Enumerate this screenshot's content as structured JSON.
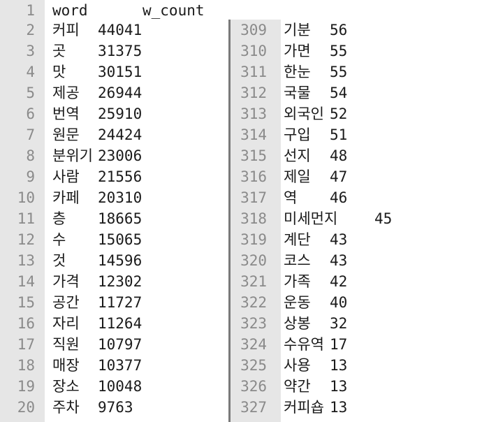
{
  "header": {
    "word_label": "word",
    "count_label": "w_count",
    "line_number": "1"
  },
  "left_rows": [
    {
      "n": "2",
      "word": "커피",
      "count": "44041"
    },
    {
      "n": "3",
      "word": "곳",
      "count": "31375"
    },
    {
      "n": "4",
      "word": "맛",
      "count": "30151"
    },
    {
      "n": "5",
      "word": "제공",
      "count": "26944"
    },
    {
      "n": "6",
      "word": "번역",
      "count": "25910"
    },
    {
      "n": "7",
      "word": "원문",
      "count": "24424"
    },
    {
      "n": "8",
      "word": "분위기",
      "count": "23006"
    },
    {
      "n": "9",
      "word": "사람",
      "count": "21556"
    },
    {
      "n": "10",
      "word": "카페",
      "count": "20310"
    },
    {
      "n": "11",
      "word": "층",
      "count": "18665"
    },
    {
      "n": "12",
      "word": "수",
      "count": "15065"
    },
    {
      "n": "13",
      "word": "것",
      "count": "14596"
    },
    {
      "n": "14",
      "word": "가격",
      "count": "12302"
    },
    {
      "n": "15",
      "word": "공간",
      "count": "11727"
    },
    {
      "n": "16",
      "word": "자리",
      "count": "11264"
    },
    {
      "n": "17",
      "word": "직원",
      "count": "10797"
    },
    {
      "n": "18",
      "word": "매장",
      "count": "10377"
    },
    {
      "n": "19",
      "word": "장소",
      "count": "10048"
    },
    {
      "n": "20",
      "word": "주차",
      "count": "9763"
    }
  ],
  "right_rows": [
    {
      "n": "309",
      "word": "기분",
      "count": "56"
    },
    {
      "n": "310",
      "word": "가면",
      "count": "55"
    },
    {
      "n": "311",
      "word": "한눈",
      "count": "55"
    },
    {
      "n": "312",
      "word": "국물",
      "count": "54"
    },
    {
      "n": "313",
      "word": "외국인",
      "count": "52"
    },
    {
      "n": "314",
      "word": "구입",
      "count": "51"
    },
    {
      "n": "315",
      "word": "선지",
      "count": "48"
    },
    {
      "n": "316",
      "word": "제일",
      "count": "47"
    },
    {
      "n": "317",
      "word": "역",
      "count": "46"
    },
    {
      "n": "318",
      "word": "미세먼지",
      "count": "45",
      "wide": true
    },
    {
      "n": "319",
      "word": "계단",
      "count": "43"
    },
    {
      "n": "320",
      "word": "코스",
      "count": "43"
    },
    {
      "n": "321",
      "word": "가족",
      "count": "42"
    },
    {
      "n": "322",
      "word": "운동",
      "count": "40"
    },
    {
      "n": "323",
      "word": "상봉",
      "count": "32"
    },
    {
      "n": "324",
      "word": "수유역",
      "count": "17"
    },
    {
      "n": "325",
      "word": "사용",
      "count": "13"
    },
    {
      "n": "326",
      "word": "약간",
      "count": "13"
    },
    {
      "n": "327",
      "word": "커피숍",
      "count": "13"
    }
  ]
}
